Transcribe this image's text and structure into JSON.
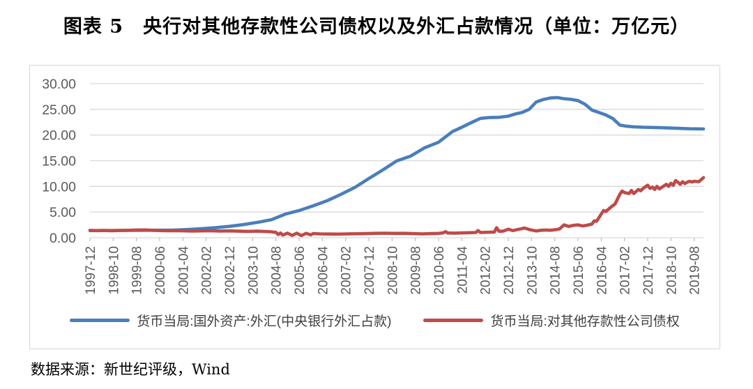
{
  "title": "图表 5　央行对其他存款性公司债权以及外汇占款情况（单位：万亿元）",
  "source": "数据来源：新世纪评级，Wind",
  "colors": {
    "series_fx_blue": "#4a7ebb",
    "series_claims_red": "#be4b48",
    "gridline": "#d9d9d9",
    "tick": "#bfbfbf",
    "axis_label": "#595959",
    "panel_border": "#d6d6d6"
  },
  "chart_data": {
    "type": "line",
    "title": "图表 5　央行对其他存款性公司债权以及外汇占款情况（单位：万亿元）",
    "unit": "万亿元",
    "grid": true,
    "legend_position": "bottom",
    "ylim": [
      0,
      30
    ],
    "y_tick_labels": [
      "0.00",
      "5.00",
      "10.00",
      "15.00",
      "20.00",
      "25.00",
      "30.00"
    ],
    "y_tick_values": [
      0,
      5,
      10,
      15,
      20,
      25,
      30
    ],
    "x_start": "1997-12",
    "x_step_months": 1,
    "x_total_months": 264,
    "x_tick_month_indices": [
      0,
      10,
      20,
      30,
      40,
      50,
      60,
      70,
      80,
      90,
      100,
      110,
      120,
      130,
      140,
      150,
      160,
      170,
      180,
      190,
      200,
      210,
      220,
      230,
      240,
      250,
      260
    ],
    "x_tick_labels": [
      "1997-12",
      "1998-10",
      "1999-08",
      "2000-06",
      "2001-04",
      "2002-02",
      "2002-12",
      "2003-10",
      "2004-08",
      "2005-06",
      "2006-04",
      "2007-02",
      "2007-12",
      "2008-10",
      "2009-08",
      "2010-06",
      "2011-04",
      "2012-02",
      "2012-12",
      "2013-10",
      "2014-08",
      "2015-06",
      "2016-04",
      "2017-02",
      "2017-12",
      "2018-10",
      "2019-08"
    ],
    "series": [
      {
        "name": "货币当局:国外资产:外汇(中央银行外汇占款)",
        "color": "#4a7ebb",
        "points": [
          [
            0,
            1.39
          ],
          [
            6,
            1.4
          ],
          [
            12,
            1.42
          ],
          [
            18,
            1.42
          ],
          [
            24,
            1.45
          ],
          [
            30,
            1.46
          ],
          [
            36,
            1.48
          ],
          [
            42,
            1.6
          ],
          [
            48,
            1.77
          ],
          [
            54,
            1.95
          ],
          [
            60,
            2.21
          ],
          [
            66,
            2.55
          ],
          [
            72,
            2.98
          ],
          [
            78,
            3.5
          ],
          [
            84,
            4.59
          ],
          [
            90,
            5.3
          ],
          [
            96,
            6.21
          ],
          [
            102,
            7.2
          ],
          [
            108,
            8.44
          ],
          [
            114,
            9.8
          ],
          [
            120,
            11.52
          ],
          [
            126,
            13.2
          ],
          [
            132,
            14.96
          ],
          [
            138,
            15.9
          ],
          [
            144,
            17.51
          ],
          [
            150,
            18.6
          ],
          [
            156,
            20.68
          ],
          [
            160,
            21.5
          ],
          [
            164,
            22.4
          ],
          [
            168,
            23.24
          ],
          [
            172,
            23.4
          ],
          [
            176,
            23.45
          ],
          [
            180,
            23.67
          ],
          [
            183,
            24.1
          ],
          [
            186,
            24.4
          ],
          [
            189,
            25.0
          ],
          [
            192,
            26.43
          ],
          [
            195,
            26.9
          ],
          [
            198,
            27.2
          ],
          [
            201,
            27.3
          ],
          [
            204,
            27.07
          ],
          [
            207,
            26.95
          ],
          [
            210,
            26.7
          ],
          [
            213,
            26.0
          ],
          [
            216,
            24.85
          ],
          [
            219,
            24.4
          ],
          [
            222,
            23.9
          ],
          [
            225,
            23.2
          ],
          [
            228,
            21.94
          ],
          [
            231,
            21.7
          ],
          [
            234,
            21.6
          ],
          [
            238,
            21.52
          ],
          [
            242,
            21.48
          ],
          [
            246,
            21.42
          ],
          [
            250,
            21.35
          ],
          [
            254,
            21.28
          ],
          [
            258,
            21.22
          ],
          [
            261,
            21.2
          ],
          [
            264,
            21.18
          ]
        ]
      },
      {
        "name": "货币当局:对其他存款性公司债权",
        "color": "#be4b48",
        "points": [
          [
            0,
            1.44
          ],
          [
            3,
            1.38
          ],
          [
            6,
            1.42
          ],
          [
            9,
            1.36
          ],
          [
            12,
            1.4
          ],
          [
            16,
            1.44
          ],
          [
            20,
            1.5
          ],
          [
            24,
            1.52
          ],
          [
            27,
            1.44
          ],
          [
            30,
            1.4
          ],
          [
            33,
            1.36
          ],
          [
            36,
            1.38
          ],
          [
            40,
            1.34
          ],
          [
            44,
            1.3
          ],
          [
            48,
            1.33
          ],
          [
            52,
            1.36
          ],
          [
            56,
            1.3
          ],
          [
            60,
            1.33
          ],
          [
            64,
            1.28
          ],
          [
            68,
            1.24
          ],
          [
            72,
            1.27
          ],
          [
            75,
            1.22
          ],
          [
            78,
            1.15
          ],
          [
            80,
            1.05
          ],
          [
            81,
            0.62
          ],
          [
            82,
            0.92
          ],
          [
            83,
            0.5
          ],
          [
            85,
            0.9
          ],
          [
            87,
            0.45
          ],
          [
            89,
            0.88
          ],
          [
            91,
            0.42
          ],
          [
            93,
            0.85
          ],
          [
            95,
            0.55
          ],
          [
            96,
            0.8
          ],
          [
            99,
            0.74
          ],
          [
            103,
            0.72
          ],
          [
            107,
            0.7
          ],
          [
            111,
            0.74
          ],
          [
            115,
            0.78
          ],
          [
            119,
            0.8
          ],
          [
            123,
            0.85
          ],
          [
            127,
            0.88
          ],
          [
            131,
            0.84
          ],
          [
            135,
            0.86
          ],
          [
            139,
            0.8
          ],
          [
            143,
            0.74
          ],
          [
            147,
            0.8
          ],
          [
            150,
            0.84
          ],
          [
            152,
            0.95
          ],
          [
            153,
            1.18
          ],
          [
            154,
            0.92
          ],
          [
            157,
            0.9
          ],
          [
            160,
            0.94
          ],
          [
            163,
            0.98
          ],
          [
            166,
            1.02
          ],
          [
            167,
            1.4
          ],
          [
            168,
            1.02
          ],
          [
            171,
            1.06
          ],
          [
            174,
            1.1
          ],
          [
            175,
            1.95
          ],
          [
            176,
            1.25
          ],
          [
            178,
            1.3
          ],
          [
            180,
            1.67
          ],
          [
            182,
            1.38
          ],
          [
            184,
            1.6
          ],
          [
            186,
            1.78
          ],
          [
            187,
            1.9
          ],
          [
            189,
            1.6
          ],
          [
            192,
            1.31
          ],
          [
            194,
            1.45
          ],
          [
            196,
            1.5
          ],
          [
            198,
            1.45
          ],
          [
            200,
            1.55
          ],
          [
            202,
            1.7
          ],
          [
            204,
            2.5
          ],
          [
            206,
            2.2
          ],
          [
            208,
            2.4
          ],
          [
            210,
            2.5
          ],
          [
            212,
            2.3
          ],
          [
            214,
            2.45
          ],
          [
            216,
            2.66
          ],
          [
            217,
            3.3
          ],
          [
            218,
            3.2
          ],
          [
            220,
            4.6
          ],
          [
            221,
            5.3
          ],
          [
            222,
            5.1
          ],
          [
            224,
            5.9
          ],
          [
            226,
            6.6
          ],
          [
            228,
            8.47
          ],
          [
            229,
            9.1
          ],
          [
            230,
            8.8
          ],
          [
            232,
            8.6
          ],
          [
            233,
            9.2
          ],
          [
            234,
            8.6
          ],
          [
            236,
            9.4
          ],
          [
            237,
            9.15
          ],
          [
            238,
            9.6
          ],
          [
            240,
            10.22
          ],
          [
            241,
            9.6
          ],
          [
            242,
            9.85
          ],
          [
            243,
            9.4
          ],
          [
            244,
            10.0
          ],
          [
            245,
            9.5
          ],
          [
            246,
            9.8
          ],
          [
            248,
            10.4
          ],
          [
            249,
            10.0
          ],
          [
            250,
            10.6
          ],
          [
            251,
            10.2
          ],
          [
            252,
            11.15
          ],
          [
            253,
            10.8
          ],
          [
            254,
            10.4
          ],
          [
            255,
            10.9
          ],
          [
            256,
            10.55
          ],
          [
            257,
            10.8
          ],
          [
            258,
            11.0
          ],
          [
            259,
            10.85
          ],
          [
            260,
            11.0
          ],
          [
            262,
            10.9
          ],
          [
            264,
            11.7
          ]
        ]
      }
    ]
  }
}
